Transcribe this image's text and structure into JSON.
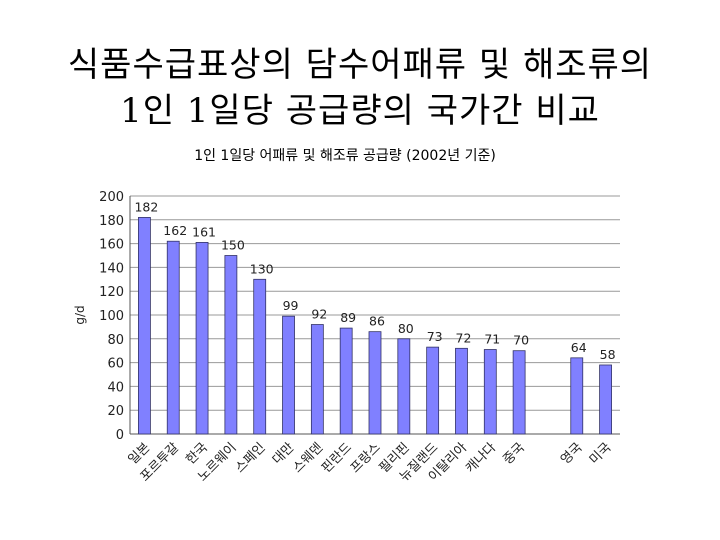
{
  "slide": {
    "title_line1": "식품수급표상의 담수어패류 및 해조류의",
    "title_line2": "1인 1일당 공급량의 국가간 비교"
  },
  "chart_data": {
    "type": "bar",
    "title": "1인 1일당 어패류 및 해조류 공급량 (2002년 기준)",
    "ylabel": "g/d",
    "ylim": [
      0,
      200
    ],
    "yticks": [
      0,
      20,
      40,
      60,
      80,
      100,
      120,
      140,
      160,
      180,
      200
    ],
    "grid": true,
    "legend": "none",
    "colors": {
      "bar": "#8080ff",
      "bar_stroke": "#333366",
      "grid": "#999999",
      "axis": "#555555"
    },
    "categories": [
      "일본",
      "포르투갈",
      "한국",
      "노르웨이",
      "스페인",
      "대만",
      "스웨덴",
      "핀란드",
      "프랑스",
      "필리핀",
      "뉴질랜드",
      "이탈리아",
      "캐나다",
      "중국",
      "",
      "영국",
      "미국"
    ],
    "values": [
      182,
      162,
      161,
      150,
      130,
      99,
      92,
      89,
      86,
      80,
      73,
      72,
      71,
      70,
      null,
      64,
      58
    ],
    "data_labels": [
      "182",
      "162",
      "161",
      "150",
      "130",
      "99",
      "92",
      "89",
      "86",
      "80",
      "73",
      "72",
      "71",
      "70",
      "",
      "64",
      "58"
    ]
  }
}
